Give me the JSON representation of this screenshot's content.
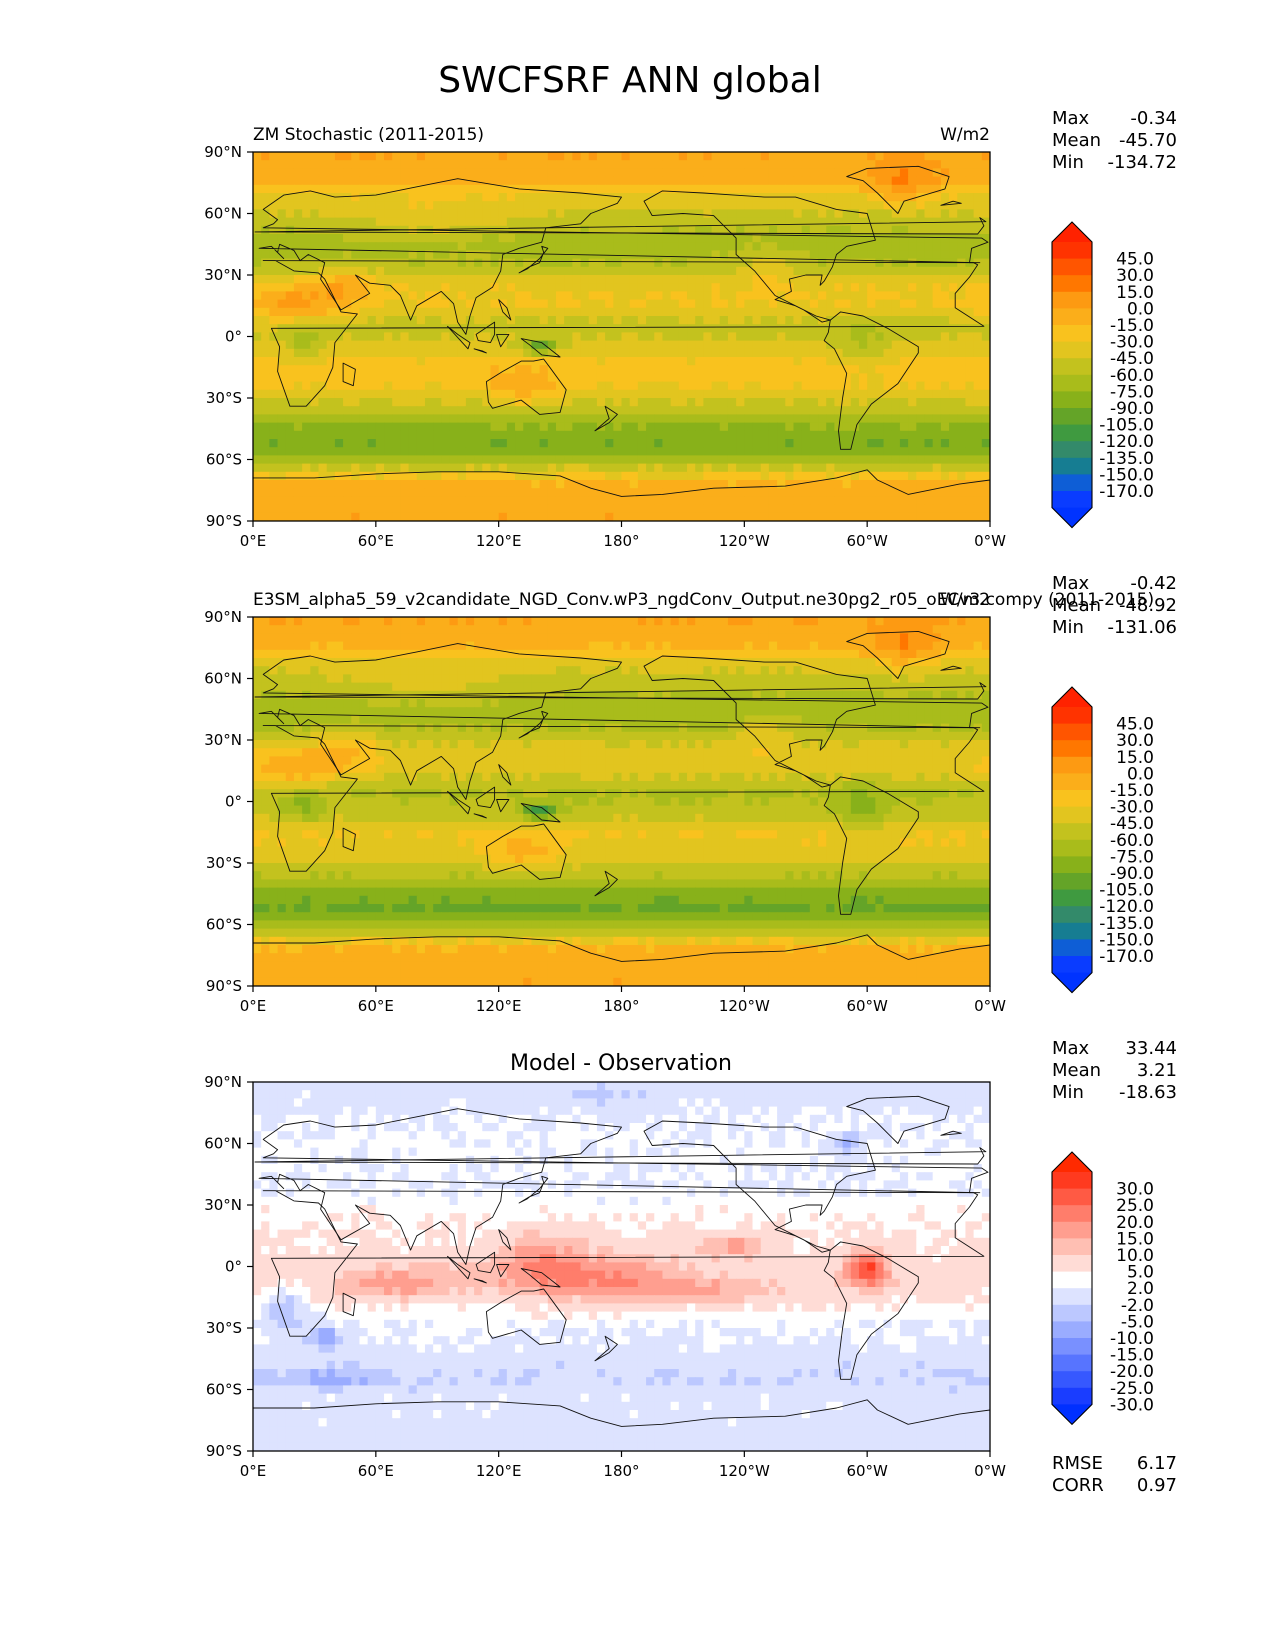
{
  "figure": {
    "title": "SWCFSRF ANN global"
  },
  "chart_data": [
    {
      "type": "heatmap",
      "panel": "test",
      "title_left": "ZM Stochastic (2011-2015)",
      "title_center": "",
      "units": "W/m2",
      "stats": [
        {
          "label": "Max",
          "value": "-0.34"
        },
        {
          "label": "Mean",
          "value": "-45.70"
        },
        {
          "label": "Min",
          "value": "-134.72"
        }
      ],
      "extra_stats": [],
      "xticks": [
        "0°E",
        "60°E",
        "120°E",
        "180°",
        "120°W",
        "60°W",
        "0°W"
      ],
      "yticks": [
        "90°N",
        "60°N",
        "30°N",
        "0°",
        "30°S",
        "60°S",
        "90°S"
      ],
      "xlim": [
        0,
        360
      ],
      "ylim": [
        -90,
        90
      ],
      "colorbar": {
        "labels": [
          "45.0",
          "30.0",
          "15.0",
          "0.0",
          "-15.0",
          "-30.0",
          "-45.0",
          "-60.0",
          "-75.0",
          "-90.0",
          "-105.0",
          "-120.0",
          "-135.0",
          "-150.0",
          "-170.0"
        ],
        "colors": [
          "#ff3300",
          "#ff5500",
          "#ff7700",
          "#fd9a12",
          "#fbae1a",
          "#f9c21e",
          "#e2c51f",
          "#c3c21e",
          "#a9bc1b",
          "#88b11a",
          "#64a428",
          "#3f9a40",
          "#338a6a",
          "#167d92",
          "#0e5ed6",
          "#0a3cff"
        ],
        "ext_top": "#ff2200",
        "ext_bottom": "#0033ff"
      },
      "field": {
        "ocean_bands": [
          {
            "lat": 90,
            "value": 0
          },
          {
            "lat": 75,
            "value": -12
          },
          {
            "lat": 68,
            "value": -35
          },
          {
            "lat": 55,
            "value": -55
          },
          {
            "lat": 45,
            "value": -70
          },
          {
            "lat": 35,
            "value": -58
          },
          {
            "lat": 25,
            "value": -32
          },
          {
            "lat": 15,
            "value": -30
          },
          {
            "lat": 5,
            "value": -52
          },
          {
            "lat": -5,
            "value": -40
          },
          {
            "lat": -15,
            "value": -22
          },
          {
            "lat": -25,
            "value": -30
          },
          {
            "lat": -35,
            "value": -52
          },
          {
            "lat": -45,
            "value": -80
          },
          {
            "lat": -52,
            "value": -88
          },
          {
            "lat": -58,
            "value": -74
          },
          {
            "lat": -66,
            "value": -38
          },
          {
            "lat": -72,
            "value": -12
          },
          {
            "lat": -90,
            "value": -2
          }
        ],
        "land_anomalies": [
          {
            "lon": 20,
            "lat": 15,
            "rlon": 22,
            "rlat": 10,
            "value": 35
          },
          {
            "lon": 45,
            "lat": 25,
            "rlon": 14,
            "rlat": 9,
            "value": 30
          },
          {
            "lon": 132,
            "lat": -25,
            "rlon": 16,
            "rlat": 10,
            "value": 25
          },
          {
            "lon": 318,
            "lat": 74,
            "rlon": 16,
            "rlat": 11,
            "value": 30
          },
          {
            "lon": 85,
            "lat": 55,
            "rlon": 45,
            "rlat": 12,
            "value": 15
          },
          {
            "lon": 25,
            "lat": -2,
            "rlon": 9,
            "rlat": 8,
            "value": -25
          },
          {
            "lon": 298,
            "lat": -5,
            "rlon": 12,
            "rlat": 11,
            "value": -22
          },
          {
            "lon": 140,
            "lat": -5,
            "rlon": 9,
            "rlat": 4,
            "value": -55
          },
          {
            "lon": 250,
            "lat": 35,
            "rlon": 14,
            "rlat": 10,
            "value": 20
          }
        ]
      }
    },
    {
      "type": "heatmap",
      "panel": "reference",
      "title_left": "E3SM_alpha5_59_v2candidate_NGD_Conv.wP3_ngdConv_Output.ne30pg2_r05_oECv3.compy (2011-2015)",
      "title_center": "",
      "units": "W/m2",
      "stats": [
        {
          "label": "Max",
          "value": "-0.42"
        },
        {
          "label": "Mean",
          "value": "-48.92"
        },
        {
          "label": "Min",
          "value": "-131.06"
        }
      ],
      "extra_stats": [],
      "xticks": [
        "0°E",
        "60°E",
        "120°E",
        "180°",
        "120°W",
        "60°W",
        "0°W"
      ],
      "yticks": [
        "90°N",
        "60°N",
        "30°N",
        "0°",
        "30°S",
        "60°S",
        "90°S"
      ],
      "xlim": [
        0,
        360
      ],
      "ylim": [
        -90,
        90
      ],
      "colorbar": {
        "labels": [
          "45.0",
          "30.0",
          "15.0",
          "0.0",
          "-15.0",
          "-30.0",
          "-45.0",
          "-60.0",
          "-75.0",
          "-90.0",
          "-105.0",
          "-120.0",
          "-135.0",
          "-150.0",
          "-170.0"
        ],
        "colors": [
          "#ff3300",
          "#ff5500",
          "#ff7700",
          "#fd9a12",
          "#fbae1a",
          "#f9c21e",
          "#e2c51f",
          "#c3c21e",
          "#a9bc1b",
          "#88b11a",
          "#64a428",
          "#3f9a40",
          "#338a6a",
          "#167d92",
          "#0e5ed6",
          "#0a3cff"
        ],
        "ext_top": "#ff2200",
        "ext_bottom": "#0033ff"
      },
      "field": {
        "ocean_bands": [
          {
            "lat": 90,
            "value": 0
          },
          {
            "lat": 75,
            "value": -14
          },
          {
            "lat": 68,
            "value": -38
          },
          {
            "lat": 55,
            "value": -58
          },
          {
            "lat": 45,
            "value": -72
          },
          {
            "lat": 35,
            "value": -60
          },
          {
            "lat": 25,
            "value": -36
          },
          {
            "lat": 15,
            "value": -38
          },
          {
            "lat": 5,
            "value": -62
          },
          {
            "lat": -5,
            "value": -55
          },
          {
            "lat": -15,
            "value": -30
          },
          {
            "lat": -25,
            "value": -34
          },
          {
            "lat": -35,
            "value": -55
          },
          {
            "lat": -45,
            "value": -84
          },
          {
            "lat": -52,
            "value": -92
          },
          {
            "lat": -58,
            "value": -76
          },
          {
            "lat": -66,
            "value": -40
          },
          {
            "lat": -72,
            "value": -13
          },
          {
            "lat": -90,
            "value": -2
          }
        ],
        "land_anomalies": [
          {
            "lon": 20,
            "lat": 15,
            "rlon": 22,
            "rlat": 10,
            "value": 35
          },
          {
            "lon": 45,
            "lat": 25,
            "rlon": 14,
            "rlat": 9,
            "value": 30
          },
          {
            "lon": 132,
            "lat": -25,
            "rlon": 16,
            "rlat": 10,
            "value": 28
          },
          {
            "lon": 318,
            "lat": 74,
            "rlon": 16,
            "rlat": 11,
            "value": 30
          },
          {
            "lon": 85,
            "lat": 55,
            "rlon": 45,
            "rlat": 12,
            "value": 15
          },
          {
            "lon": 25,
            "lat": -2,
            "rlon": 9,
            "rlat": 8,
            "value": -25
          },
          {
            "lon": 298,
            "lat": -5,
            "rlon": 12,
            "rlat": 11,
            "value": -30
          },
          {
            "lon": 140,
            "lat": -5,
            "rlon": 9,
            "rlat": 4,
            "value": -60
          },
          {
            "lon": 250,
            "lat": 35,
            "rlon": 14,
            "rlat": 10,
            "value": 20
          }
        ]
      }
    },
    {
      "type": "heatmap",
      "panel": "difference",
      "title_left": "",
      "title_center": "Model - Observation",
      "units": "",
      "stats": [
        {
          "label": "Max",
          "value": "33.44"
        },
        {
          "label": "Mean",
          "value": "3.21"
        },
        {
          "label": "Min",
          "value": "-18.63"
        }
      ],
      "extra_stats": [
        {
          "label": "RMSE",
          "value": "6.17"
        },
        {
          "label": "CORR",
          "value": "0.97"
        }
      ],
      "xticks": [
        "0°E",
        "60°E",
        "120°E",
        "180°",
        "120°W",
        "60°W",
        "0°W"
      ],
      "yticks": [
        "90°N",
        "60°N",
        "30°N",
        "0°",
        "30°S",
        "60°S",
        "90°S"
      ],
      "xlim": [
        0,
        360
      ],
      "ylim": [
        -90,
        90
      ],
      "colorbar": {
        "labels": [
          "30.0",
          "25.0",
          "20.0",
          "15.0",
          "10.0",
          "5.0",
          "2.0",
          "-2.0",
          "-5.0",
          "-10.0",
          "-15.0",
          "-20.0",
          "-25.0",
          "-30.0"
        ],
        "colors": [
          "#ff3a1f",
          "#ff5a44",
          "#ff7d6b",
          "#ff9e8f",
          "#ffbfb3",
          "#ffdcd6",
          "#ffffff",
          "#dde3ff",
          "#bcc8ff",
          "#9aacff",
          "#7990ff",
          "#5774ff",
          "#3658ff",
          "#1a3dff"
        ],
        "ext_top": "#ff2a00",
        "ext_bottom": "#0030ff"
      },
      "field": {
        "ocean_bands": [
          {
            "lat": 90,
            "value": 0
          },
          {
            "lat": 70,
            "value": 2
          },
          {
            "lat": 55,
            "value": 3
          },
          {
            "lat": 40,
            "value": 2
          },
          {
            "lat": 20,
            "value": 5
          },
          {
            "lat": 5,
            "value": 6
          },
          {
            "lat": -10,
            "value": 7
          },
          {
            "lat": -25,
            "value": 3
          },
          {
            "lat": -40,
            "value": 1
          },
          {
            "lat": -55,
            "value": -2
          },
          {
            "lat": -65,
            "value": 1
          },
          {
            "lat": -90,
            "value": 0
          }
        ],
        "land_anomalies": [
          {
            "lon": 165,
            "lat": -5,
            "rlon": 45,
            "rlat": 11,
            "value": 14
          },
          {
            "lon": 140,
            "lat": 5,
            "rlon": 20,
            "rlat": 12,
            "value": 10
          },
          {
            "lon": 70,
            "lat": -8,
            "rlon": 28,
            "rlat": 8,
            "value": 11
          },
          {
            "lon": 300,
            "lat": -2,
            "rlon": 10,
            "rlat": 8,
            "value": 26
          },
          {
            "lon": 235,
            "lat": 10,
            "rlon": 16,
            "rlat": 5,
            "value": 12
          },
          {
            "lon": 220,
            "lat": -12,
            "rlon": 40,
            "rlat": 6,
            "value": 8
          },
          {
            "lon": 15,
            "lat": -20,
            "rlon": 12,
            "rlat": 10,
            "value": -8
          },
          {
            "lon": 35,
            "lat": -35,
            "rlon": 8,
            "rlat": 6,
            "value": -10
          },
          {
            "lon": 290,
            "lat": 60,
            "rlon": 8,
            "rlat": 6,
            "value": -9
          },
          {
            "lon": 40,
            "lat": -55,
            "rlon": 30,
            "rlat": 4,
            "value": -5
          },
          {
            "lon": 170,
            "lat": 83,
            "rlon": 25,
            "rlat": 5,
            "value": -4
          }
        ]
      }
    }
  ]
}
